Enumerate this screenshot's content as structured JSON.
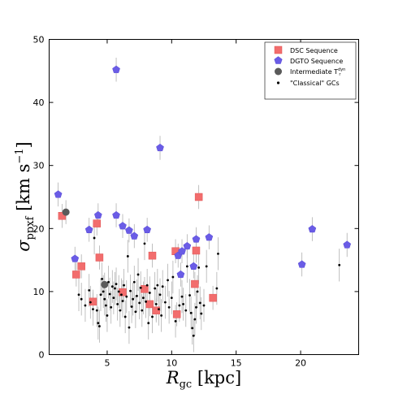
{
  "chart_data": {
    "type": "scatter",
    "xlabel_main": "R",
    "xlabel_sub": "gc",
    "xlabel_unit": " [kpc]",
    "ylabel_main": "σ",
    "ylabel_sub": "ppxf",
    "ylabel_unit": " [km s",
    "ylabel_exp": "−1",
    "ylabel_close": "]",
    "xlim": [
      0.5,
      24.5
    ],
    "ylim": [
      0,
      50
    ],
    "xticks": [
      5,
      10,
      15,
      20
    ],
    "yticks": [
      0,
      10,
      20,
      30,
      40,
      50
    ],
    "grid": false,
    "legend_position": "top-right",
    "colors": {
      "dsc": "#f26d6d",
      "dgto": "#6a5ce6",
      "intermediate": "#5a5a5a",
      "classical": "#000000",
      "errorbar": "#b0b0b0"
    },
    "legend": {
      "dsc": "DSC Sequence",
      "dgto": "DGTO Sequence",
      "intermediate": "Intermediate T",
      "intermediate_sup": "dyn",
      "intermediate_sub": "r",
      "classical": "\"Classical\" GCs"
    },
    "series": [
      {
        "name": "DSC Sequence",
        "marker": "square",
        "points": [
          [
            1.5,
            22.0
          ],
          [
            2.6,
            12.7
          ],
          [
            3.0,
            14.0
          ],
          [
            3.9,
            8.4
          ],
          [
            4.2,
            20.8
          ],
          [
            4.4,
            15.4
          ],
          [
            6.2,
            9.9
          ],
          [
            7.9,
            10.4
          ],
          [
            8.3,
            8.0
          ],
          [
            8.5,
            15.7
          ],
          [
            8.8,
            7.0
          ],
          [
            10.3,
            16.4
          ],
          [
            10.4,
            6.4
          ],
          [
            11.8,
            11.2
          ],
          [
            11.9,
            16.5
          ],
          [
            12.1,
            25.0
          ],
          [
            13.2,
            9.0
          ]
        ]
      },
      {
        "name": "DGTO Sequence",
        "marker": "pentagon",
        "points": [
          [
            1.2,
            25.4
          ],
          [
            2.5,
            15.2
          ],
          [
            3.6,
            19.8
          ],
          [
            4.3,
            22.1
          ],
          [
            5.7,
            45.2
          ],
          [
            5.7,
            22.1
          ],
          [
            6.2,
            20.4
          ],
          [
            6.7,
            19.7
          ],
          [
            7.1,
            18.8
          ],
          [
            8.1,
            19.8
          ],
          [
            9.1,
            32.8
          ],
          [
            10.5,
            15.7
          ],
          [
            10.8,
            16.4
          ],
          [
            11.2,
            17.2
          ],
          [
            11.7,
            14.0
          ],
          [
            11.9,
            18.3
          ],
          [
            12.9,
            18.6
          ],
          [
            10.7,
            12.7
          ],
          [
            20.1,
            14.3
          ],
          [
            20.9,
            19.9
          ],
          [
            23.6,
            17.4
          ]
        ]
      },
      {
        "name": "Intermediate",
        "marker": "circle",
        "points": [
          [
            1.8,
            22.6
          ],
          [
            4.8,
            11.1
          ]
        ]
      },
      {
        "name": "\"Classical\" GCs",
        "marker": "dot",
        "points": [
          [
            2.8,
            9.5
          ],
          [
            3.0,
            8.8
          ],
          [
            3.3,
            7.8
          ],
          [
            3.6,
            10.2
          ],
          [
            3.7,
            8.3
          ],
          [
            3.9,
            7.2
          ],
          [
            4.0,
            18.5
          ],
          [
            4.2,
            7.0
          ],
          [
            4.3,
            5.0
          ],
          [
            4.4,
            4.5
          ],
          [
            4.5,
            9.5
          ],
          [
            4.6,
            12.0
          ],
          [
            4.7,
            10.0
          ],
          [
            4.8,
            8.8
          ],
          [
            4.9,
            7.8
          ],
          [
            5.0,
            6.2
          ],
          [
            5.1,
            11.5
          ],
          [
            5.2,
            9.6
          ],
          [
            5.3,
            7.5
          ],
          [
            5.4,
            10.8
          ],
          [
            5.5,
            9.0
          ],
          [
            5.6,
            10.5
          ],
          [
            5.7,
            11.2
          ],
          [
            5.8,
            8.0
          ],
          [
            5.9,
            10.0
          ],
          [
            6.0,
            7.0
          ],
          [
            6.1,
            9.5
          ],
          [
            6.2,
            8.5
          ],
          [
            6.3,
            11.0
          ],
          [
            6.4,
            6.0
          ],
          [
            6.5,
            9.2
          ],
          [
            6.6,
            15.6
          ],
          [
            6.7,
            4.3
          ],
          [
            6.8,
            10.1
          ],
          [
            6.9,
            7.6
          ],
          [
            7.0,
            8.8
          ],
          [
            7.1,
            11.5
          ],
          [
            7.2,
            6.8
          ],
          [
            7.3,
            9.3
          ],
          [
            7.4,
            12.7
          ],
          [
            7.5,
            8.2
          ],
          [
            7.6,
            10.6
          ],
          [
            7.7,
            7.0
          ],
          [
            7.8,
            9.0
          ],
          [
            7.9,
            17.6
          ],
          [
            8.0,
            8.4
          ],
          [
            8.1,
            11.0
          ],
          [
            8.2,
            5.0
          ],
          [
            8.3,
            9.8
          ],
          [
            8.5,
            6.0
          ],
          [
            8.7,
            10.5
          ],
          [
            8.8,
            8.0
          ],
          [
            8.9,
            11.0
          ],
          [
            9.0,
            7.2
          ],
          [
            9.1,
            9.5
          ],
          [
            9.2,
            6.2
          ],
          [
            9.3,
            10.8
          ],
          [
            9.5,
            8.3
          ],
          [
            9.7,
            11.8
          ],
          [
            9.8,
            7.5
          ],
          [
            10.0,
            9.0
          ],
          [
            10.1,
            12.3
          ],
          [
            10.3,
            5.3
          ],
          [
            10.6,
            7.8
          ],
          [
            10.8,
            9.2
          ],
          [
            10.9,
            8.0
          ],
          [
            11.1,
            7.0
          ],
          [
            11.2,
            14.0
          ],
          [
            11.4,
            9.4
          ],
          [
            11.5,
            6.6
          ],
          [
            11.6,
            4.2
          ],
          [
            11.7,
            3.0
          ],
          [
            11.8,
            5.6
          ],
          [
            11.9,
            7.5
          ],
          [
            12.0,
            10.0
          ],
          [
            12.1,
            13.8
          ],
          [
            12.2,
            8.2
          ],
          [
            12.3,
            6.5
          ],
          [
            12.5,
            7.8
          ],
          [
            12.7,
            14.0
          ],
          [
            13.5,
            10.5
          ],
          [
            13.6,
            16.0
          ],
          [
            23.0,
            14.2
          ]
        ]
      }
    ]
  }
}
